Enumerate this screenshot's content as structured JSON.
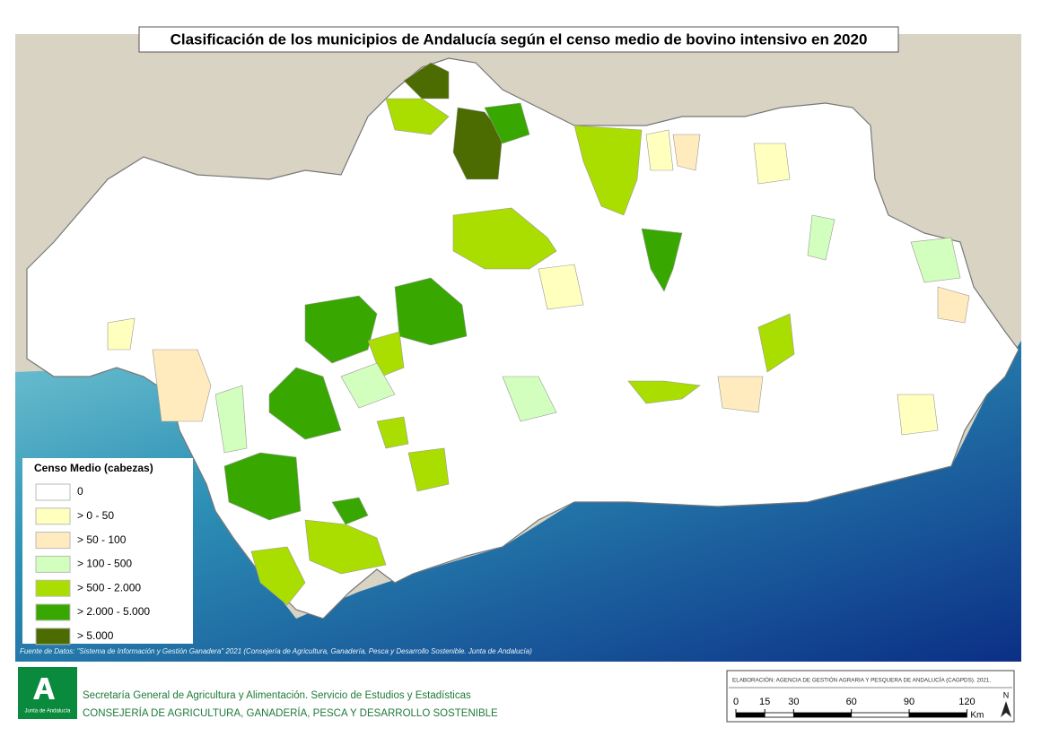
{
  "title": "Clasificación de los municipios de Andalucía según el censo medio de bovino intensivo en 2020",
  "legend": {
    "title": "Censo Medio (cabezas)",
    "items": [
      {
        "label": "0",
        "color": "#ffffff"
      },
      {
        "label": "> 0 - 50",
        "color": "#ffffbe"
      },
      {
        "label": "> 50 - 100",
        "color": "#ffebbe"
      },
      {
        "label": "> 100 - 500",
        "color": "#d3ffbe"
      },
      {
        "label": "> 500 - 2.000",
        "color": "#aadd00"
      },
      {
        "label": "> 2.000 - 5.000",
        "color": "#38a800"
      },
      {
        "label": "> 5.000",
        "color": "#4c6b00"
      }
    ]
  },
  "source": "Fuente de Datos: \"Sistema de Información y Gestión Ganadera\" 2021 (Consejería de Agricultura, Ganadería, Pesca y Desarrollo Sostenible. Junta de Andalucía)",
  "footer": {
    "logo_text": "Junta de Andalucía",
    "line1": "Secretaría General de Agricultura y Alimentación. Servicio de Estudios y Estadísticas",
    "line2": "CONSEJERÍA DE AGRICULTURA, GANADERÍA, PESCA Y DESARROLLO SOSTENIBLE"
  },
  "credits": "ELABORACIÓN: AGENCIA DE GESTIÓN AGRARIA Y PESQUERA DE ANDALUCÍA (CAGPDS). 2021.",
  "scale": {
    "ticks": [
      0,
      15,
      30,
      60,
      90,
      120
    ],
    "unit": "Km"
  },
  "north": "N"
}
